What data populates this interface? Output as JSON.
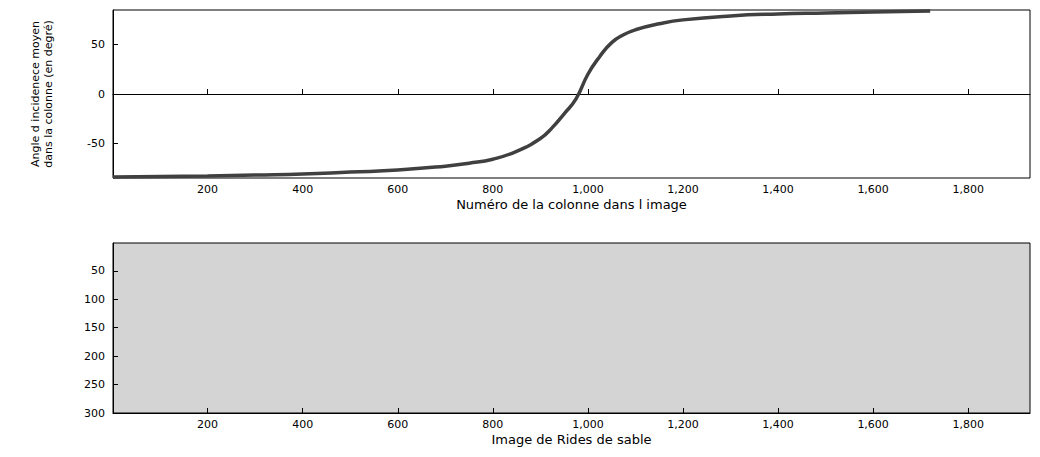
{
  "chart_data": [
    {
      "type": "line",
      "x_label": "Numéro de la colonne dans l image",
      "y_label": "Angle d incidenece moyen\ndans la colonne (en degré)",
      "x": [
        1,
        100,
        200,
        300,
        400,
        500,
        600,
        700,
        750,
        800,
        850,
        900,
        925,
        950,
        975,
        1000,
        1025,
        1050,
        1075,
        1100,
        1150,
        1200,
        1300,
        1400,
        1500,
        1600,
        1720
      ],
      "values": [
        -84,
        -83.5,
        -83,
        -82,
        -81,
        -79,
        -77,
        -73,
        -70,
        -66,
        -58,
        -45,
        -34,
        -20,
        -5,
        20,
        38,
        52,
        60,
        65,
        71,
        75,
        79,
        81,
        82,
        83,
        84
      ],
      "color": "#404040",
      "xlim": [
        1,
        1930
      ],
      "xticks": [
        200,
        400,
        600,
        800,
        1000,
        1200,
        1400,
        1600,
        1800
      ],
      "ylim": [
        -85,
        85
      ],
      "yticks": [
        -50,
        0,
        50
      ],
      "grid": false
    },
    {
      "type": "image",
      "x_label": "Image de Rides de sable",
      "color": "#d4d4d4",
      "xlim": [
        1,
        1930
      ],
      "xticks": [
        200,
        400,
        600,
        800,
        1000,
        1200,
        1400,
        1600,
        1800
      ],
      "ylim": [
        1,
        300
      ],
      "yticks": [
        50,
        100,
        150,
        200,
        250,
        300
      ],
      "grid": false
    }
  ]
}
